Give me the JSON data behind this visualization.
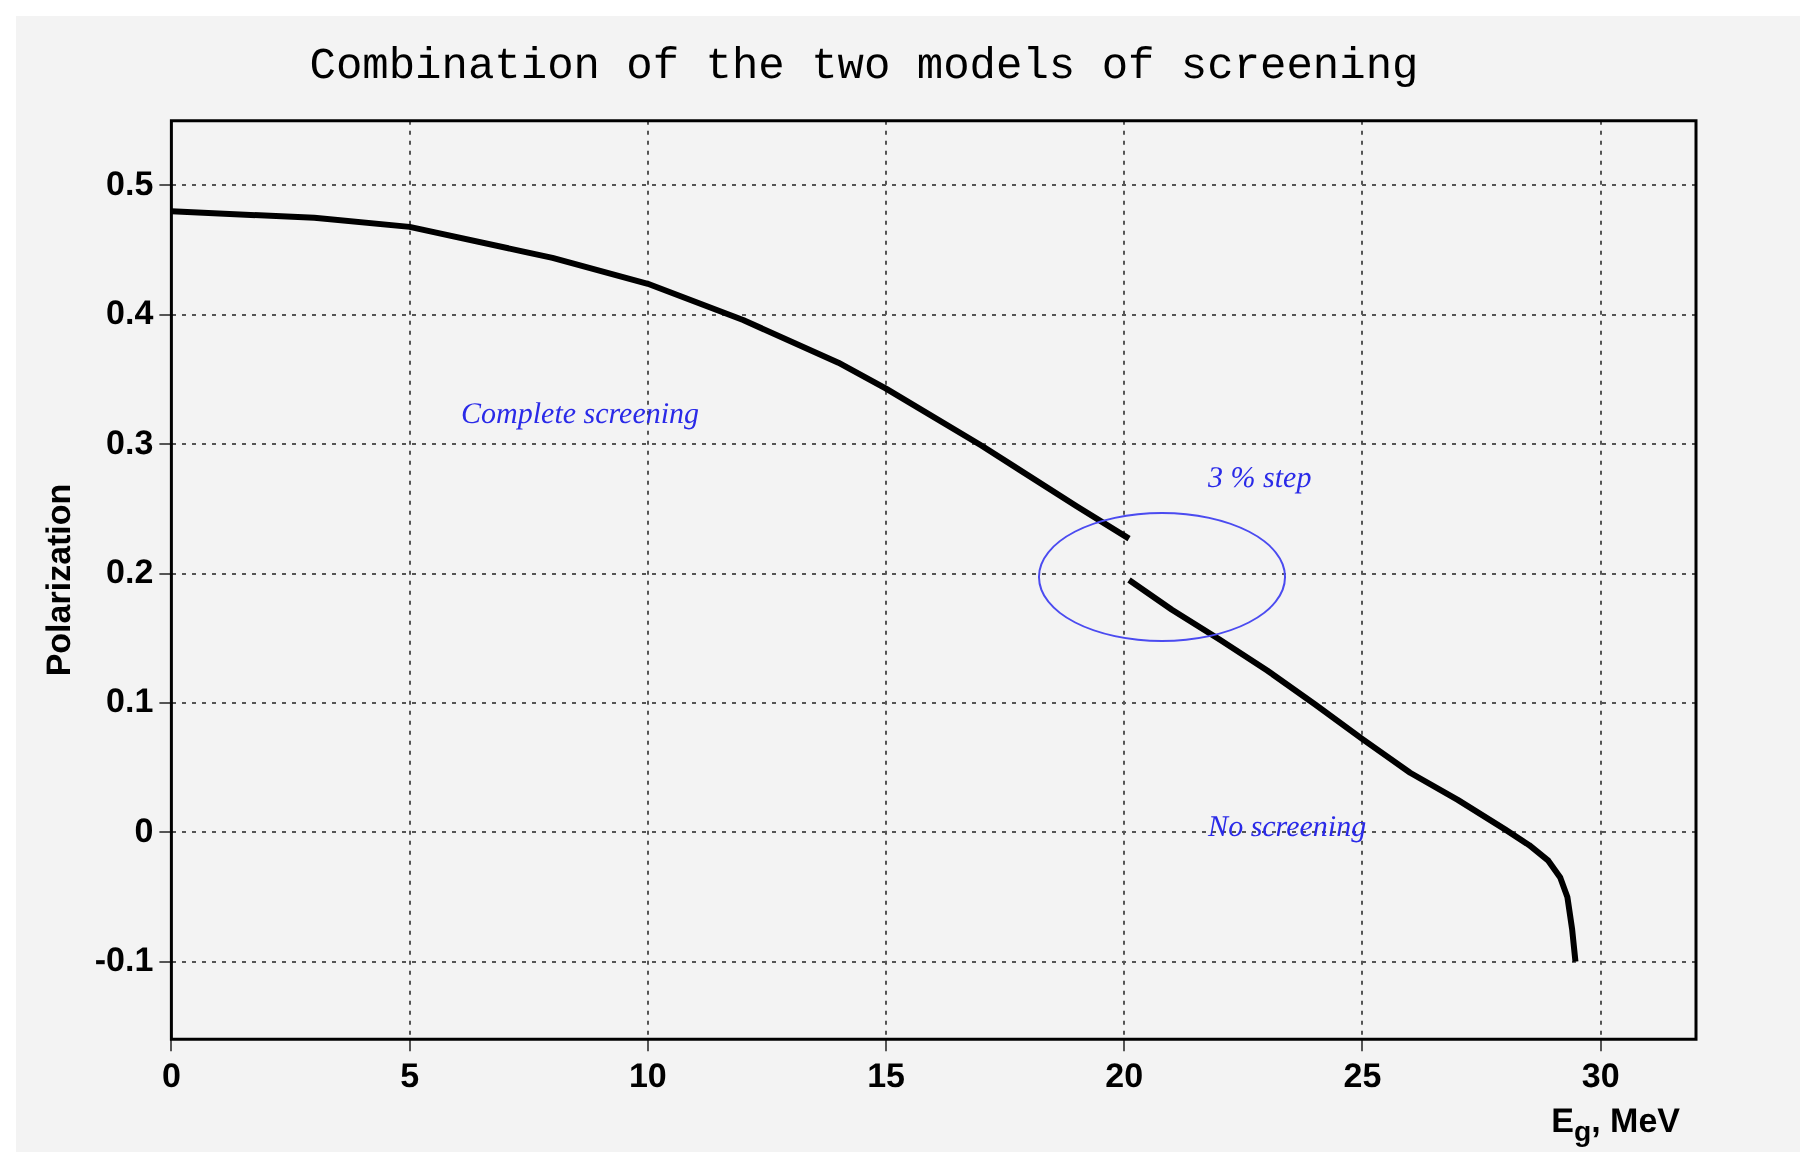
{
  "chart_data": {
    "type": "line",
    "title": "Combination of the two models of screening",
    "xlabel": "E$_{g}$, MeV",
    "ylabel": "Polarization",
    "xlim": [
      0,
      32
    ],
    "ylim": [
      -0.16,
      0.55
    ],
    "xticks": [
      0,
      5,
      10,
      15,
      20,
      25,
      30
    ],
    "yticks": [
      -0.1,
      0,
      0.1,
      0.2,
      0.3,
      0.4,
      0.5
    ],
    "grid": true,
    "legend": false,
    "marker": "none",
    "line_style": "solid",
    "series": [
      {
        "color": "#000000",
        "x": [
          0,
          3,
          5,
          8,
          10,
          12,
          14,
          15,
          17,
          19,
          20.1
        ],
        "values": [
          0.48,
          0.475,
          0.468,
          0.444,
          0.424,
          0.396,
          0.363,
          0.343,
          0.299,
          0.252,
          0.227
        ]
      },
      {
        "color": "#000000",
        "x": [
          20.1,
          21,
          22,
          23,
          24,
          25,
          26,
          27,
          28,
          28.5,
          28.9,
          29.15,
          29.3,
          29.4,
          29.47
        ],
        "values": [
          0.195,
          0.172,
          0.149,
          0.125,
          0.099,
          0.072,
          0.046,
          0.025,
          0.002,
          -0.01,
          -0.022,
          -0.035,
          -0.05,
          -0.075,
          -0.1
        ]
      }
    ],
    "annotations": [
      "Complete screening",
      "3 % step",
      "No screening"
    ]
  }
}
